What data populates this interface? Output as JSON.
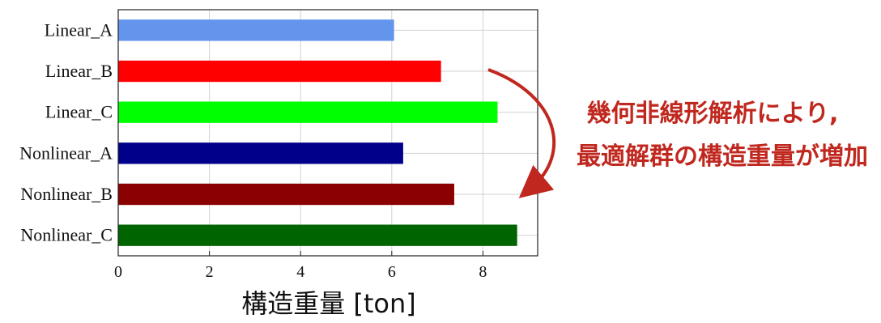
{
  "chart_data": {
    "type": "bar",
    "orientation": "horizontal",
    "categories": [
      "Linear_A",
      "Linear_B",
      "Linear_C",
      "Nonlinear_A",
      "Nonlinear_B",
      "Nonlinear_C"
    ],
    "values": [
      6.05,
      7.08,
      8.32,
      6.25,
      7.37,
      8.75
    ],
    "colors": [
      "#6495ed",
      "#ff0000",
      "#00ff00",
      "#00008b",
      "#8b0000",
      "#006400"
    ],
    "xlabel": "構造重量 [ton]",
    "ylabel": "",
    "xlim": [
      0,
      9.2
    ],
    "xticks": [
      0,
      2,
      4,
      6,
      8
    ],
    "grid": true,
    "annotation": {
      "lines": [
        "幾何非線形解析により,",
        "最適解群の構造重量が増加"
      ],
      "color": "#c0281f",
      "arrow": "curved-down"
    }
  }
}
